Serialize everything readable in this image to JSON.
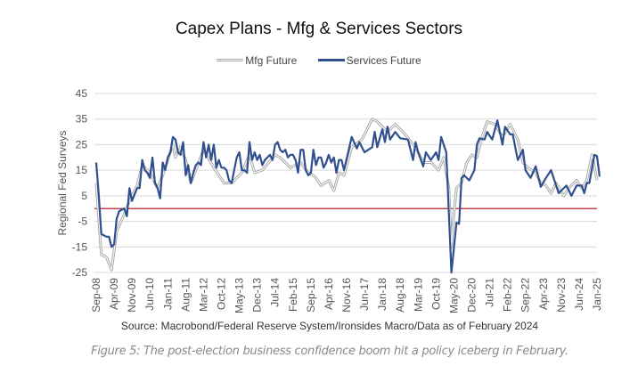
{
  "chart_data": {
    "type": "line",
    "title": "Capex Plans - Mfg & Services Sectors",
    "xlabel": "",
    "ylabel": "Regional Fed Surveys",
    "ylim": [
      -25,
      45
    ],
    "yticks": [
      45,
      35,
      25,
      15,
      5,
      -5,
      -15,
      -25
    ],
    "reference_line": {
      "value": 0,
      "color": "#b22222"
    },
    "x_start": "Sep-08",
    "x_unit": "months since Sep-08",
    "xticks": [
      "Sep-08",
      "Apr-09",
      "Nov-09",
      "Jun-10",
      "Jan-11",
      "Aug-11",
      "Mar-12",
      "Oct-12",
      "May-13",
      "Dec-13",
      "Jul-14",
      "Feb-15",
      "Sep-15",
      "Apr-16",
      "Nov-16",
      "Jun-17",
      "Jan-18",
      "Aug-18",
      "Mar-19",
      "Oct-19",
      "May-20",
      "Dec-20",
      "Jul-21",
      "Feb-22",
      "Sep-22",
      "Apr-23",
      "Nov-23",
      "Jun-24",
      "Jan-25"
    ],
    "grid": true,
    "legend_position": "top-center",
    "series": [
      {
        "name": "Mfg Future",
        "color": "#a9a9a9",
        "points": [
          [
            0,
            10
          ],
          [
            2,
            -18
          ],
          [
            4,
            -19
          ],
          [
            6,
            -24
          ],
          [
            8,
            -9
          ],
          [
            11,
            -2
          ],
          [
            13,
            3
          ],
          [
            16,
            9
          ],
          [
            18,
            17
          ],
          [
            21,
            14
          ],
          [
            24,
            8
          ],
          [
            26,
            13
          ],
          [
            30,
            25
          ],
          [
            31,
            20
          ],
          [
            33,
            24
          ],
          [
            35,
            19
          ],
          [
            37,
            10
          ],
          [
            42,
            23
          ],
          [
            46,
            16
          ],
          [
            50,
            10
          ],
          [
            53,
            10
          ],
          [
            57,
            14
          ],
          [
            60,
            21
          ],
          [
            62,
            14
          ],
          [
            65,
            15
          ],
          [
            70,
            21
          ],
          [
            72,
            20
          ],
          [
            76,
            16
          ],
          [
            80,
            18
          ],
          [
            83,
            14
          ],
          [
            85,
            13
          ],
          [
            86,
            12
          ],
          [
            88,
            9
          ],
          [
            91,
            11
          ],
          [
            93,
            7
          ],
          [
            95,
            14
          ],
          [
            97,
            13
          ],
          [
            100,
            24
          ],
          [
            104,
            27
          ],
          [
            108,
            35
          ],
          [
            110,
            34
          ],
          [
            114,
            30
          ],
          [
            117,
            33
          ],
          [
            120,
            30
          ],
          [
            125,
            24
          ],
          [
            128,
            18
          ],
          [
            131,
            18
          ],
          [
            134,
            15
          ],
          [
            136,
            20
          ],
          [
            138,
            8
          ],
          [
            139,
            -15
          ],
          [
            140,
            -2
          ],
          [
            141,
            8
          ],
          [
            143,
            10
          ],
          [
            145,
            18
          ],
          [
            147,
            21
          ],
          [
            149,
            20
          ],
          [
            151,
            28
          ],
          [
            153,
            34
          ],
          [
            156,
            33
          ],
          [
            159,
            28
          ],
          [
            162,
            33
          ],
          [
            165,
            27
          ],
          [
            167,
            18
          ],
          [
            169,
            16
          ],
          [
            172,
            14
          ],
          [
            174,
            10
          ],
          [
            176,
            9
          ],
          [
            178,
            6
          ],
          [
            180,
            10
          ],
          [
            183,
            5
          ],
          [
            185,
            8
          ],
          [
            188,
            11
          ],
          [
            190,
            8
          ],
          [
            192,
            11
          ],
          [
            194,
            21
          ],
          [
            196,
            11
          ]
        ]
      },
      {
        "name": "Services Future",
        "color": "#2f4f8f",
        "points": [
          [
            0,
            18
          ],
          [
            1,
            5
          ],
          [
            2,
            -10
          ],
          [
            4,
            -11
          ],
          [
            5,
            -11
          ],
          [
            6,
            -15
          ],
          [
            7,
            -14
          ],
          [
            8,
            -4
          ],
          [
            9,
            -1
          ],
          [
            11,
            0
          ],
          [
            12,
            -3
          ],
          [
            13,
            8
          ],
          [
            14,
            3
          ],
          [
            16,
            8
          ],
          [
            17,
            8
          ],
          [
            18,
            19
          ],
          [
            19,
            15
          ],
          [
            20,
            14
          ],
          [
            21,
            12
          ],
          [
            22,
            20
          ],
          [
            23,
            10
          ],
          [
            24,
            8
          ],
          [
            25,
            4
          ],
          [
            26,
            18
          ],
          [
            27,
            15
          ],
          [
            28,
            20
          ],
          [
            29,
            22
          ],
          [
            30,
            28
          ],
          [
            31,
            27
          ],
          [
            32,
            22
          ],
          [
            33,
            21
          ],
          [
            34,
            26
          ],
          [
            35,
            13
          ],
          [
            36,
            17
          ],
          [
            37,
            10
          ],
          [
            38,
            14
          ],
          [
            39,
            17
          ],
          [
            40,
            18
          ],
          [
            41,
            17
          ],
          [
            42,
            26
          ],
          [
            43,
            20
          ],
          [
            44,
            25
          ],
          [
            45,
            19
          ],
          [
            46,
            25
          ],
          [
            47,
            16
          ],
          [
            48,
            19
          ],
          [
            49,
            16
          ],
          [
            50,
            16
          ],
          [
            51,
            15
          ],
          [
            52,
            11
          ],
          [
            53,
            10
          ],
          [
            54,
            15
          ],
          [
            55,
            20
          ],
          [
            56,
            22
          ],
          [
            57,
            15
          ],
          [
            58,
            15
          ],
          [
            59,
            14
          ],
          [
            60,
            26
          ],
          [
            61,
            19
          ],
          [
            62,
            22
          ],
          [
            63,
            19
          ],
          [
            64,
            21
          ],
          [
            65,
            17
          ],
          [
            66,
            19
          ],
          [
            67,
            20
          ],
          [
            68,
            21
          ],
          [
            69,
            19
          ],
          [
            70,
            25
          ],
          [
            71,
            26
          ],
          [
            72,
            23
          ],
          [
            73,
            22
          ],
          [
            74,
            23
          ],
          [
            75,
            20
          ],
          [
            76,
            21
          ],
          [
            77,
            21
          ],
          [
            78,
            19
          ],
          [
            79,
            14
          ],
          [
            80,
            23
          ],
          [
            81,
            23
          ],
          [
            82,
            15
          ],
          [
            83,
            13
          ],
          [
            84,
            14
          ],
          [
            85,
            23
          ],
          [
            86,
            17
          ],
          [
            87,
            20
          ],
          [
            88,
            20
          ],
          [
            89,
            16
          ],
          [
            90,
            18
          ],
          [
            91,
            21
          ],
          [
            92,
            18
          ],
          [
            93,
            20
          ],
          [
            94,
            14
          ],
          [
            95,
            19
          ],
          [
            96,
            19
          ],
          [
            97,
            15
          ],
          [
            100,
            28
          ],
          [
            102,
            23.5
          ],
          [
            103,
            26
          ],
          [
            105,
            22
          ],
          [
            108,
            24
          ],
          [
            109,
            30
          ],
          [
            110,
            24
          ],
          [
            112,
            31
          ],
          [
            113,
            26
          ],
          [
            114,
            32
          ],
          [
            115,
            27
          ],
          [
            117,
            30
          ],
          [
            119,
            27.5
          ],
          [
            122,
            27
          ],
          [
            124,
            19
          ],
          [
            125,
            26
          ],
          [
            126,
            22
          ],
          [
            128,
            16.5
          ],
          [
            129,
            22
          ],
          [
            131,
            19
          ],
          [
            133,
            22
          ],
          [
            134,
            19
          ],
          [
            135,
            28
          ],
          [
            137,
            22
          ],
          [
            139,
            -25
          ],
          [
            141,
            -5.5
          ],
          [
            142,
            -6
          ],
          [
            143,
            12
          ],
          [
            144,
            13
          ],
          [
            146,
            11
          ],
          [
            148,
            15
          ],
          [
            149,
            25
          ],
          [
            150,
            27.5
          ],
          [
            152,
            27
          ],
          [
            153,
            30
          ],
          [
            155,
            27
          ],
          [
            157,
            34.5
          ],
          [
            159,
            25
          ],
          [
            160,
            32
          ],
          [
            162,
            29
          ],
          [
            163,
            29
          ],
          [
            165,
            19
          ],
          [
            167,
            23
          ],
          [
            168,
            15
          ],
          [
            170,
            12
          ],
          [
            172,
            16.5
          ],
          [
            174,
            8.5
          ],
          [
            176,
            12
          ],
          [
            178,
            15
          ],
          [
            181,
            6
          ],
          [
            184,
            9
          ],
          [
            186,
            5
          ],
          [
            188,
            9
          ],
          [
            190,
            9
          ],
          [
            191,
            6
          ],
          [
            192,
            10
          ],
          [
            193,
            10
          ],
          [
            195,
            21
          ],
          [
            196,
            20.5
          ],
          [
            197,
            12.5
          ]
        ]
      }
    ],
    "legend": [
      "Mfg Future",
      "Services Future"
    ]
  },
  "source": "Source: Macrobond/Federal Reserve System/Ironsides Macro/Data as of February 2024",
  "caption": "Figure 5: The post-election business confidence boom hit a policy iceberg in February."
}
